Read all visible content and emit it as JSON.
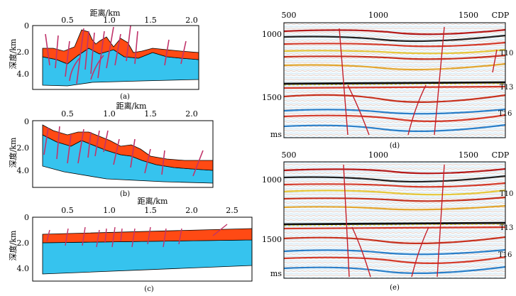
{
  "colors": {
    "sediment": "#ff4a14",
    "basement": "#36c3ee",
    "fault": "#c0336a",
    "frame": "#000000"
  },
  "panels_left": {
    "a": {
      "caption": "(a)",
      "xlabel": "距离/km",
      "ylabel": "深度/km",
      "xticks": [
        "0.5",
        "1.0",
        "1.5",
        "2.0"
      ],
      "yticks": [
        "0",
        "2.0",
        "4.0"
      ]
    },
    "b": {
      "caption": "(b)",
      "xlabel": "距离/km",
      "ylabel": "深度/km",
      "xticks": [
        "0.5",
        "1.0",
        "1.5",
        "2.0"
      ],
      "yticks": [
        "0",
        "2.0",
        "4.0"
      ]
    },
    "c": {
      "caption": "(c)",
      "xlabel": "距离/km",
      "ylabel": "深度/km",
      "xticks": [
        "0.5",
        "1.0",
        "1.5",
        "2.0",
        "2.5"
      ],
      "yticks": [
        "0",
        "2.0",
        "4.0"
      ]
    }
  },
  "panels_right": {
    "d": {
      "caption": "(d)",
      "xticks": [
        "500",
        "1000",
        "1500"
      ],
      "xunit": "CDP",
      "yticks": [
        "1000",
        "1500"
      ],
      "yunit": "ms",
      "horizons": [
        "T10",
        "T13",
        "T16"
      ]
    },
    "e": {
      "caption": "(e)",
      "xticks": [
        "500",
        "1000",
        "1500"
      ],
      "xunit": "CDP",
      "yticks": [
        "1000",
        "1500"
      ],
      "yunit": "ms",
      "horizons": [
        "T10",
        "T13",
        "T16"
      ]
    }
  }
}
